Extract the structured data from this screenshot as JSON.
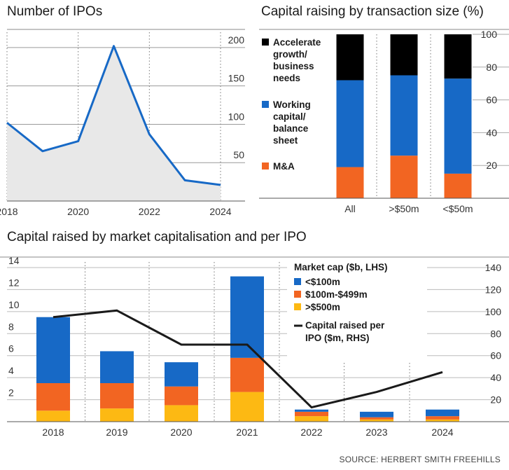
{
  "chart_data": [
    {
      "id": "ipos",
      "type": "area",
      "title": "Number of IPOs",
      "x": [
        2018,
        2019,
        2020,
        2021,
        2022,
        2023,
        2024
      ],
      "values": [
        102,
        65,
        78,
        202,
        87,
        27,
        21
      ],
      "x_tick_labels": [
        "2018",
        "2020",
        "2022",
        "2024"
      ],
      "y_ticks": [
        50,
        100,
        150,
        200
      ],
      "ylim": [
        0,
        220
      ],
      "grid": true,
      "colors": {
        "line": "#1769c6",
        "fill": "#e8e8e8"
      }
    },
    {
      "id": "transaction",
      "type": "bar",
      "stacked": true,
      "title": "Capital raising by transaction size (%)",
      "categories": [
        "All",
        ">$50m",
        "<$50m"
      ],
      "series": [
        {
          "name": "M&A",
          "color": "#f26522",
          "values": [
            19,
            26,
            15
          ]
        },
        {
          "name": "Working capital/ balance sheet",
          "color": "#1769c6",
          "values": [
            53,
            49,
            58
          ]
        },
        {
          "name": "Accelerate growth/ business needs",
          "color": "#000000",
          "values": [
            28,
            25,
            27
          ]
        }
      ],
      "legend_order": [
        "Accelerate growth/ business needs",
        "Working capital/ balance sheet",
        "M&A"
      ],
      "legend_lines": [
        [
          "Accelerate",
          "growth/",
          "business",
          "needs"
        ],
        [
          "Working",
          "capital/",
          "balance",
          "sheet"
        ],
        [
          "M&A"
        ]
      ],
      "y_ticks": [
        20,
        40,
        60,
        80,
        100
      ],
      "ylim": [
        0,
        100
      ],
      "legend_position": "left"
    },
    {
      "id": "marketcap",
      "type": "bar",
      "stacked": true,
      "title": "Capital raised by market capitalisation and per IPO",
      "categories": [
        "2018",
        "2019",
        "2020",
        "2021",
        "2022",
        "2023",
        "2024"
      ],
      "legend_title": "Market cap ($b, LHS)",
      "series": [
        {
          "name": ">$500m",
          "color": "#fdb913",
          "values": [
            1.0,
            1.2,
            1.5,
            2.7,
            0.5,
            0.2,
            0.2
          ]
        },
        {
          "name": "$100m-$499m",
          "color": "#f26522",
          "values": [
            2.5,
            2.3,
            1.7,
            3.1,
            0.4,
            0.2,
            0.3
          ]
        },
        {
          "name": "<$100m",
          "color": "#1769c6",
          "values": [
            6.0,
            2.9,
            2.2,
            7.4,
            0.2,
            0.5,
            0.6
          ]
        }
      ],
      "line": {
        "name": "Capital raised per IPO ($m, RHS)",
        "legend_lines": [
          "Capital raised per",
          "IPO ($m, RHS)"
        ],
        "color": "#1a1a1a",
        "values": [
          95,
          101,
          70,
          70,
          13,
          27,
          45
        ]
      },
      "y_left_ticks": [
        2,
        4,
        6,
        8,
        10,
        12,
        14
      ],
      "y_right_ticks": [
        20,
        40,
        60,
        80,
        100,
        120,
        140
      ],
      "ylim_left": [
        0,
        14
      ],
      "ylim_right": [
        0,
        140
      ],
      "legend_position": "top-right"
    }
  ],
  "source": "SOURCE: HERBERT SMITH FREEHILLS"
}
